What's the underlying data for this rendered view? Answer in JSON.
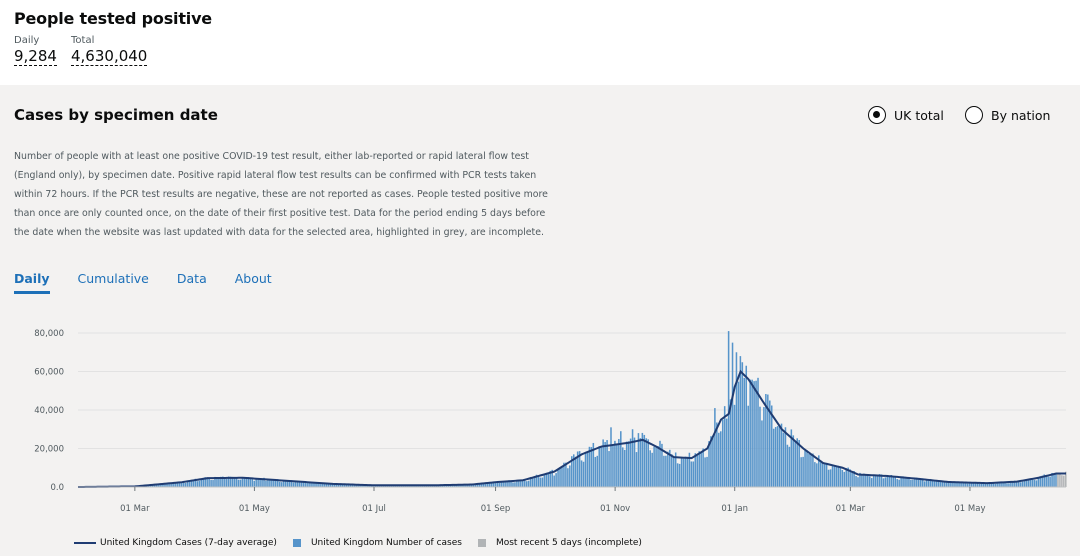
{
  "headline": {
    "title": "People tested positive",
    "daily_label": "Daily",
    "daily_value": "9,284",
    "total_label": "Total",
    "total_value": "4,630,040"
  },
  "card": {
    "title": "Cases by specimen date",
    "radio_uk": "UK total",
    "radio_nation": "By nation",
    "selected": "UK total",
    "description": "Number of people with at least one positive COVID-19 test result, either lab-reported or rapid lateral flow test (England only), by specimen date. Positive rapid lateral flow test results can be confirmed with PCR tests taken within 72 hours. If the PCR test results are negative, these are not reported as cases. People tested positive more than once are only counted once, on the date of their first positive test. Data for the period ending 5 days before the date when the website was last updated with data for the selected area, highlighted in grey, are incomplete.",
    "tabs": [
      "Daily",
      "Cumulative",
      "Data",
      "About"
    ],
    "active_tab": "Daily"
  },
  "chart_data": {
    "type": "bar",
    "x_range": [
      "2020-02-01",
      "2021-06-19"
    ],
    "ylim": [
      0,
      80000
    ],
    "y_ticks": [
      "0.0",
      "20,000",
      "40,000",
      "60,000",
      "80,000"
    ],
    "x_ticks": [
      "01 Mar",
      "01 May",
      "01 Jul",
      "01 Sep",
      "01 Nov",
      "01 Jan",
      "01 Mar",
      "01 May"
    ],
    "grid": "horizontal",
    "colors": {
      "bars": "#5694ca",
      "incomplete": "#b1b4b6",
      "line": "#1f3c72"
    },
    "avg_keypoints": [
      [
        "2020-02-01",
        0
      ],
      [
        "2020-03-01",
        300
      ],
      [
        "2020-03-25",
        2500
      ],
      [
        "2020-04-07",
        4600
      ],
      [
        "2020-04-25",
        4800
      ],
      [
        "2020-05-15",
        3400
      ],
      [
        "2020-06-10",
        1600
      ],
      [
        "2020-07-01",
        900
      ],
      [
        "2020-08-01",
        900
      ],
      [
        "2020-08-20",
        1300
      ],
      [
        "2020-09-01",
        2500
      ],
      [
        "2020-09-15",
        3500
      ],
      [
        "2020-10-01",
        8000
      ],
      [
        "2020-10-15",
        17000
      ],
      [
        "2020-10-25",
        21000
      ],
      [
        "2020-11-08",
        23000
      ],
      [
        "2020-11-15",
        24500
      ],
      [
        "2020-11-22",
        21000
      ],
      [
        "2020-12-01",
        15500
      ],
      [
        "2020-12-10",
        15000
      ],
      [
        "2020-12-18",
        20000
      ],
      [
        "2020-12-25",
        35000
      ],
      [
        "2020-12-29",
        38000
      ],
      [
        "2021-01-01",
        52000
      ],
      [
        "2021-01-04",
        60000
      ],
      [
        "2021-01-08",
        56000
      ],
      [
        "2021-01-15",
        45000
      ],
      [
        "2021-01-25",
        30000
      ],
      [
        "2021-02-05",
        20000
      ],
      [
        "2021-02-15",
        12500
      ],
      [
        "2021-02-25",
        10000
      ],
      [
        "2021-03-05",
        6500
      ],
      [
        "2021-03-20",
        5700
      ],
      [
        "2021-04-05",
        4200
      ],
      [
        "2021-04-20",
        2600
      ],
      [
        "2021-05-10",
        2000
      ],
      [
        "2021-05-25",
        2800
      ],
      [
        "2021-06-05",
        4800
      ],
      [
        "2021-06-14",
        7000
      ]
    ],
    "bar_spikes": [
      [
        "2020-10-30",
        31000
      ],
      [
        "2020-11-04",
        29000
      ],
      [
        "2020-11-10",
        30000
      ],
      [
        "2020-11-13",
        28000
      ],
      [
        "2020-11-24",
        24000
      ],
      [
        "2020-12-22",
        41000
      ],
      [
        "2020-12-27",
        42000
      ],
      [
        "2020-12-29",
        81000
      ],
      [
        "2020-12-31",
        75000
      ],
      [
        "2021-01-02",
        70000
      ],
      [
        "2021-01-04",
        68000
      ],
      [
        "2021-01-07",
        63000
      ],
      [
        "2021-01-11",
        55000
      ]
    ],
    "incomplete_from": "2021-06-15",
    "legend": [
      {
        "label": "United Kingdom Cases (7-day average)",
        "kind": "line"
      },
      {
        "label": "United Kingdom Number of cases",
        "kind": "bar"
      },
      {
        "label": "Most recent 5 days (incomplete)",
        "kind": "incomplete"
      }
    ]
  }
}
